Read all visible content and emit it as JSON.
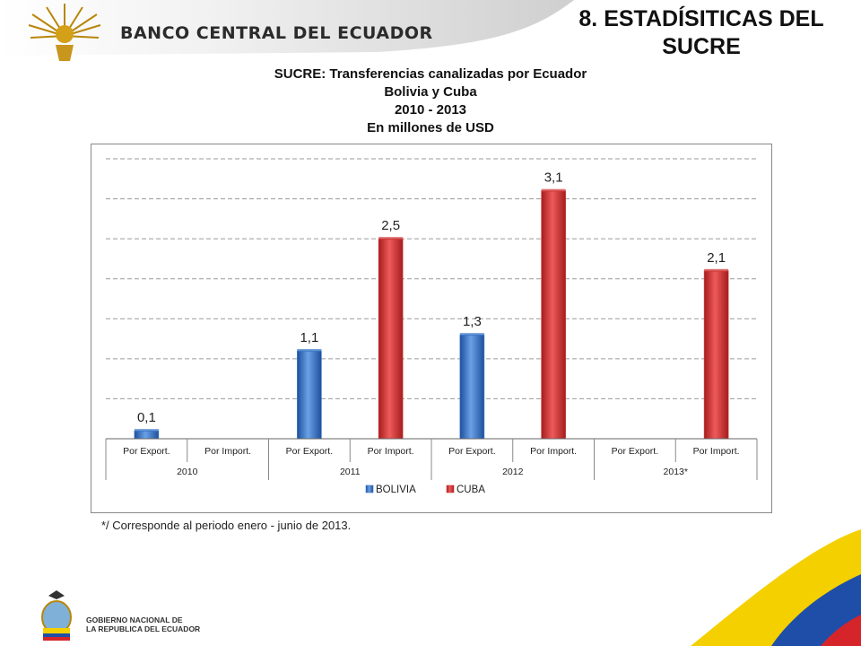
{
  "header": {
    "bank_name": "BANCO CENTRAL DEL ECUADOR",
    "slide_title_line1": "8. ESTADÍSITICAS DEL",
    "slide_title_line2": "SUCRE"
  },
  "chart_data": {
    "type": "bar",
    "title": "SUCRE: Transferencias canalizadas por Ecuador",
    "subtitle_lines": [
      "Bolivia y Cuba",
      "2010 - 2013",
      "En millones de USD"
    ],
    "categories": [
      "Por Export.",
      "Por Import.",
      "Por Export.",
      "Por Import.",
      "Por Export.",
      "Por Import.",
      "Por Export.",
      "Por Import."
    ],
    "groups": [
      "2010",
      "2011",
      "2012",
      "2013*"
    ],
    "series": [
      {
        "name": "BOLIVIA",
        "color": "#3b78c8",
        "values": [
          0.1,
          null,
          1.1,
          null,
          1.3,
          null,
          null,
          null
        ]
      },
      {
        "name": "CUBA",
        "color": "#d23b3b",
        "values": [
          null,
          null,
          null,
          2.5,
          null,
          3.1,
          null,
          2.1
        ]
      }
    ],
    "data_labels": [
      "0,1",
      "",
      "1,1",
      "2,5",
      "1,3",
      "3,1",
      "",
      "2,1"
    ],
    "ylim": [
      0,
      3.5
    ],
    "grid": true,
    "legend_position": "bottom"
  },
  "footnote": "*/ Corresponde al periodo enero - junio de 2013.",
  "footer": {
    "org_line1": "GOBIERNO NACIONAL DE",
    "org_line2": "LA REPUBLICA DEL ECUADOR"
  },
  "colors": {
    "flag_yellow": "#f5d000",
    "flag_blue": "#1f4ea8",
    "flag_red": "#d6252a"
  }
}
